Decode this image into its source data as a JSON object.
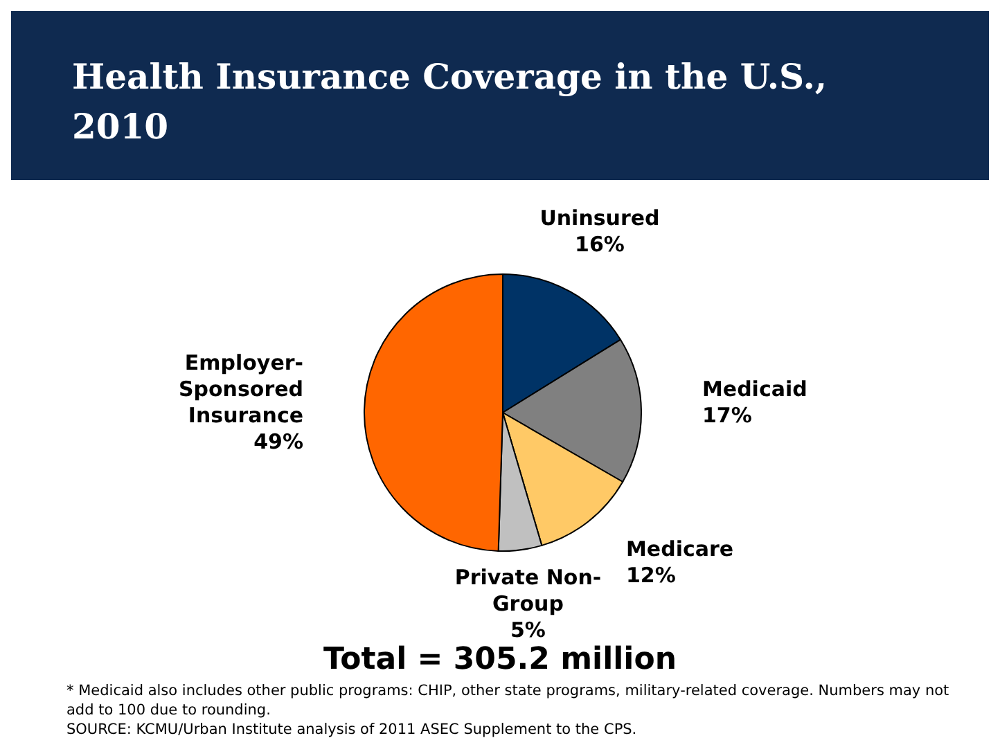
{
  "chart_data": {
    "type": "pie",
    "title": "Health Insurance Coverage in the U.S., 2010",
    "categories": [
      "Uninsured",
      "Medicaid",
      "Medicare",
      "Private Non-Group",
      "Employer-Sponsored Insurance"
    ],
    "values": [
      16,
      17,
      12,
      5,
      49
    ],
    "value_labels": [
      "16%",
      "17%",
      "12%",
      "5%",
      "49%"
    ],
    "colors": [
      "#003366",
      "#808080",
      "#ffc966",
      "#c0c0c0",
      "#ff6600"
    ],
    "legend": false,
    "annotations": [
      "Total = 305.2 million",
      "* Medicaid also includes other public programs: CHIP, other state programs, military-related coverage. Numbers may not add to 100 due to rounding.",
      "SOURCE: KCMU/Urban Institute analysis of 2011 ASEC Supplement to the CPS."
    ]
  }
}
